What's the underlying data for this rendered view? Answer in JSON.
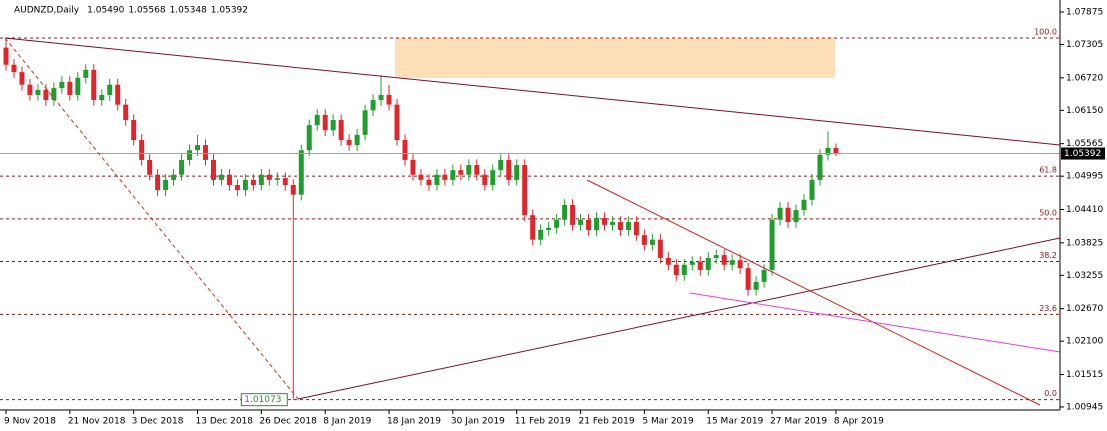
{
  "chart_data": {
    "type": "candlestick",
    "title": "AUDNZD,Daily",
    "info": [
      {
        "value": 1.0549,
        "label": "1.05490"
      },
      {
        "value": 1.05568,
        "label": "1.05568"
      },
      {
        "value": 1.05348,
        "label": "1.05348"
      },
      {
        "value": 1.05392,
        "label": "1.05392"
      }
    ],
    "up_color": "#1f9e2e",
    "down_color": "#e0262b",
    "ylim": [
      1.00892,
      1.08086
    ],
    "yticks": [
      1.07875,
      1.07305,
      {
        "value": 1.0672,
        "label": "1.06720"
      },
      {
        "value": 1.0615,
        "label": "1.06150"
      },
      1.05565,
      1.04995,
      {
        "value": 1.0441,
        "label": "1.04410"
      },
      1.03825,
      1.03255,
      {
        "value": 1.0267,
        "label": "1.02670"
      },
      {
        "value": 1.021,
        "label": "1.02100"
      },
      1.01515,
      1.00945
    ],
    "bid": 1.05392,
    "fib": {
      "high": 1.0742,
      "low": 1.01073,
      "color": "#8b1a1a",
      "levels": [
        {
          "value": 100,
          "label": "100.0"
        },
        61.8,
        {
          "value": 50,
          "label": "50.0"
        },
        38.2,
        23.6,
        {
          "value": 0,
          "label": "0.0"
        }
      ]
    },
    "categories": [
      "9 Nov 2018",
      null,
      null,
      null,
      null,
      null,
      null,
      null,
      "21 Nov 2018",
      null,
      null,
      null,
      null,
      null,
      null,
      null,
      "3 Dec 2018",
      null,
      null,
      null,
      null,
      null,
      null,
      null,
      "13 Dec 2018",
      null,
      null,
      null,
      null,
      null,
      null,
      null,
      "26 Dec 2018",
      null,
      null,
      null,
      null,
      null,
      null,
      null,
      "8 Jan 2019",
      null,
      null,
      null,
      null,
      null,
      null,
      null,
      "18 Jan 2019",
      null,
      null,
      null,
      null,
      null,
      null,
      null,
      "30 Jan 2019",
      null,
      null,
      null,
      null,
      null,
      null,
      null,
      "11 Feb 2019",
      null,
      null,
      null,
      null,
      null,
      null,
      null,
      "21 Feb 2019",
      null,
      null,
      null,
      null,
      null,
      null,
      null,
      "5 Mar 2019",
      null,
      null,
      null,
      null,
      null,
      null,
      null,
      "15 Mar 2019",
      null,
      null,
      null,
      null,
      null,
      null,
      null,
      "27 Mar 2019",
      null,
      null,
      null,
      null,
      null,
      null,
      null,
      "8 Apr 2019"
    ],
    "candles": [
      [
        1.0725,
        1.0742,
        1.0685,
        1.0695
      ],
      [
        1.0695,
        1.0705,
        1.0672,
        1.0682
      ],
      [
        1.0682,
        1.0692,
        1.065,
        1.066
      ],
      [
        1.066,
        1.067,
        1.0632,
        1.0642
      ],
      [
        1.0642,
        1.0661,
        1.0632,
        1.0651
      ],
      [
        1.0651,
        1.0661,
        1.0623,
        1.0633
      ],
      [
        1.0633,
        1.0664,
        1.0623,
        1.0654
      ],
      [
        1.0654,
        1.0675,
        1.0644,
        1.0665
      ],
      [
        1.0665,
        1.0675,
        1.0632,
        1.0642
      ],
      [
        1.0642,
        1.0682,
        1.0632,
        1.0672
      ],
      [
        1.0672,
        1.0696,
        1.0662,
        1.0686
      ],
      [
        1.0686,
        1.0696,
        1.0623,
        1.0633
      ],
      [
        1.0633,
        1.0652,
        1.0623,
        1.0642
      ],
      [
        1.0642,
        1.067,
        1.0632,
        1.066
      ],
      [
        1.066,
        1.067,
        1.0615,
        1.0625
      ],
      [
        1.0625,
        1.0635,
        1.0588,
        1.0598
      ],
      [
        1.0598,
        1.0608,
        1.0553,
        1.0563
      ],
      [
        1.0563,
        1.0573,
        1.0518,
        1.0528
      ],
      [
        1.0528,
        1.0538,
        1.0492,
        1.0502
      ],
      [
        1.0502,
        1.0512,
        1.0465,
        1.0475
      ],
      [
        1.0475,
        1.0503,
        1.0465,
        1.0493
      ],
      [
        1.0493,
        1.0512,
        1.0483,
        1.0502
      ],
      [
        1.0502,
        1.0538,
        1.0492,
        1.0528
      ],
      [
        1.0528,
        1.0555,
        1.0518,
        1.0545
      ],
      [
        1.0545,
        1.0572,
        1.0535,
        1.0554
      ],
      [
        1.0554,
        1.0564,
        1.0518,
        1.0528
      ],
      [
        1.0528,
        1.0538,
        1.0483,
        1.0493
      ],
      [
        1.0493,
        1.0512,
        1.0483,
        1.0502
      ],
      [
        1.0502,
        1.0512,
        1.0474,
        1.0484
      ],
      [
        1.0484,
        1.0494,
        1.0465,
        1.0475
      ],
      [
        1.0475,
        1.0503,
        1.0465,
        1.0493
      ],
      [
        1.0493,
        1.0503,
        1.0474,
        1.0484
      ],
      [
        1.0484,
        1.0512,
        1.0474,
        1.0502
      ],
      [
        1.0502,
        1.0512,
        1.0483,
        1.0493
      ],
      [
        1.0493,
        1.0506,
        1.0483,
        1.0496
      ],
      [
        1.0496,
        1.0506,
        1.0474,
        1.0484
      ],
      [
        1.0484,
        1.0494,
        1.0107,
        1.0467
      ],
      [
        1.0467,
        1.0555,
        1.0457,
        1.0545
      ],
      [
        1.0545,
        1.0599,
        1.0535,
        1.0589
      ],
      [
        1.0589,
        1.0617,
        1.0579,
        1.0607
      ],
      [
        1.0607,
        1.0617,
        1.057,
        1.058
      ],
      [
        1.058,
        1.0608,
        1.057,
        1.0598
      ],
      [
        1.0598,
        1.0608,
        1.0553,
        1.0563
      ],
      [
        1.0563,
        1.0573,
        1.0544,
        1.0554
      ],
      [
        1.0554,
        1.0582,
        1.0544,
        1.0572
      ],
      [
        1.0572,
        1.0625,
        1.0562,
        1.0615
      ],
      [
        1.0615,
        1.0643,
        1.0605,
        1.0633
      ],
      [
        1.0633,
        1.0677,
        1.0623,
        1.0642
      ],
      [
        1.0642,
        1.066,
        1.0615,
        1.0625
      ],
      [
        1.0625,
        1.0635,
        1.0553,
        1.0563
      ],
      [
        1.0563,
        1.0573,
        1.0518,
        1.0528
      ],
      [
        1.0528,
        1.0538,
        1.0492,
        1.0502
      ],
      [
        1.0502,
        1.0512,
        1.0483,
        1.0493
      ],
      [
        1.0493,
        1.0503,
        1.0474,
        1.0484
      ],
      [
        1.0484,
        1.0512,
        1.0474,
        1.0502
      ],
      [
        1.0502,
        1.0512,
        1.0483,
        1.0493
      ],
      [
        1.0493,
        1.052,
        1.0483,
        1.051
      ],
      [
        1.051,
        1.052,
        1.0492,
        1.0502
      ],
      [
        1.0502,
        1.0529,
        1.0492,
        1.0519
      ],
      [
        1.0519,
        1.0529,
        1.0492,
        1.0502
      ],
      [
        1.0502,
        1.0512,
        1.0474,
        1.0484
      ],
      [
        1.0484,
        1.052,
        1.0474,
        1.051
      ],
      [
        1.051,
        1.0538,
        1.05,
        1.0528
      ],
      [
        1.0528,
        1.0538,
        1.0483,
        1.0493
      ],
      [
        1.0493,
        1.0529,
        1.0483,
        1.0519
      ],
      [
        1.0519,
        1.0529,
        1.0421,
        1.0431
      ],
      [
        1.0431,
        1.0441,
        1.0378,
        1.0388
      ],
      [
        1.0388,
        1.0415,
        1.0378,
        1.0405
      ],
      [
        1.0405,
        1.0419,
        1.0395,
        1.0409
      ],
      [
        1.0409,
        1.0433,
        1.0399,
        1.0423
      ],
      [
        1.0423,
        1.0459,
        1.0413,
        1.0449
      ],
      [
        1.0449,
        1.0459,
        1.0404,
        1.0414
      ],
      [
        1.0414,
        1.0433,
        1.0404,
        1.0423
      ],
      [
        1.0423,
        1.0433,
        1.0395,
        1.0405
      ],
      [
        1.0405,
        1.0436,
        1.0395,
        1.0426
      ],
      [
        1.0426,
        1.0436,
        1.0404,
        1.0414
      ],
      [
        1.0414,
        1.0429,
        1.0404,
        1.0419
      ],
      [
        1.0419,
        1.0429,
        1.0395,
        1.0405
      ],
      [
        1.0405,
        1.0429,
        1.0395,
        1.0419
      ],
      [
        1.0419,
        1.0429,
        1.0386,
        1.0396
      ],
      [
        1.0396,
        1.0406,
        1.0369,
        1.0379
      ],
      [
        1.0379,
        1.0398,
        1.0369,
        1.0388
      ],
      [
        1.0388,
        1.0398,
        1.0346,
        1.0356
      ],
      [
        1.0356,
        1.0366,
        1.0334,
        1.0344
      ],
      [
        1.0344,
        1.0354,
        1.0316,
        1.0326
      ],
      [
        1.0326,
        1.0354,
        1.0316,
        1.0344
      ],
      [
        1.0344,
        1.0359,
        1.0334,
        1.0349
      ],
      [
        1.0349,
        1.0359,
        1.0325,
        1.0335
      ],
      [
        1.0335,
        1.0366,
        1.0325,
        1.0356
      ],
      [
        1.0356,
        1.0371,
        1.0346,
        1.0361
      ],
      [
        1.0361,
        1.0371,
        1.0334,
        1.0344
      ],
      [
        1.0344,
        1.0362,
        1.0334,
        1.0352
      ],
      [
        1.0352,
        1.0362,
        1.0328,
        1.0338
      ],
      [
        1.0338,
        1.0348,
        1.029,
        1.03
      ],
      [
        1.03,
        1.0324,
        1.029,
        1.0314
      ],
      [
        1.0314,
        1.0345,
        1.0304,
        1.0335
      ],
      [
        1.0335,
        1.0433,
        1.0325,
        1.0423
      ],
      [
        1.0423,
        1.0454,
        1.0413,
        1.0444
      ],
      [
        1.0444,
        1.0454,
        1.0409,
        1.0419
      ],
      [
        1.0419,
        1.045,
        1.0409,
        1.044
      ],
      [
        1.044,
        1.0468,
        1.043,
        1.0458
      ],
      [
        1.0458,
        1.0503,
        1.0448,
        1.0493
      ],
      [
        1.0493,
        1.0547,
        1.0483,
        1.0537
      ],
      [
        1.0537,
        1.0578,
        1.0527,
        1.0549
      ],
      [
        1.0549,
        1.05568,
        1.05348,
        1.05392
      ]
    ]
  }
}
